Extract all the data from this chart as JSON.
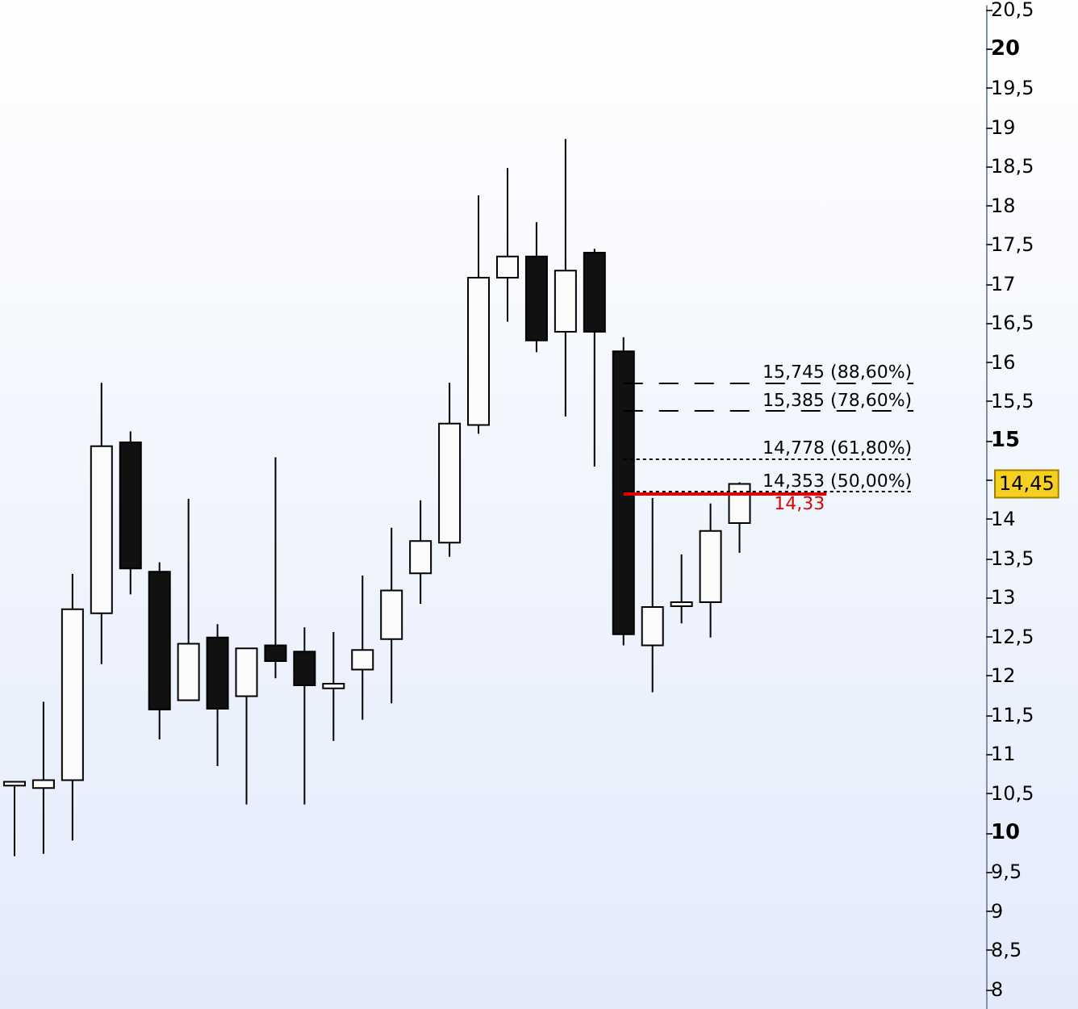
{
  "chart_data": {
    "type": "candlestick",
    "categories": [
      null,
      null,
      null,
      null,
      null,
      null,
      null,
      null,
      null,
      null,
      null,
      null,
      null,
      null,
      null,
      null,
      null,
      null,
      null,
      null,
      null,
      null,
      null,
      null,
      null,
      null,
      null,
      null,
      null,
      null,
      null,
      null,
      null,
      null
    ],
    "ohlc": [
      [
        10.6,
        10.65,
        9.7,
        10.65
      ],
      [
        10.57,
        11.67,
        9.73,
        10.67
      ],
      [
        10.67,
        13.3,
        9.9,
        12.85
      ],
      [
        12.8,
        15.74,
        12.15,
        14.93
      ],
      [
        14.98,
        15.12,
        13.04,
        13.37
      ],
      [
        13.33,
        13.45,
        11.19,
        11.57
      ],
      [
        11.69,
        14.26,
        11.69,
        12.41
      ],
      [
        12.49,
        12.66,
        10.85,
        11.58
      ],
      [
        11.74,
        12.35,
        10.36,
        12.35
      ],
      [
        12.39,
        14.79,
        11.97,
        12.19
      ],
      [
        12.31,
        12.62,
        10.36,
        11.88
      ],
      [
        11.84,
        12.56,
        11.17,
        11.9
      ],
      [
        12.08,
        13.28,
        11.44,
        12.33
      ],
      [
        12.47,
        13.89,
        11.65,
        13.09
      ],
      [
        13.31,
        14.24,
        12.92,
        13.72
      ],
      [
        13.7,
        15.74,
        13.52,
        15.22
      ],
      [
        15.2,
        18.13,
        15.09,
        17.08
      ],
      [
        17.08,
        18.48,
        16.52,
        17.35
      ],
      [
        17.35,
        17.79,
        16.13,
        16.28
      ],
      [
        16.39,
        18.85,
        15.31,
        17.17
      ],
      [
        17.4,
        17.45,
        14.67,
        16.39
      ],
      [
        16.14,
        16.32,
        12.39,
        12.53
      ],
      [
        12.39,
        14.27,
        11.79,
        12.88
      ],
      [
        12.89,
        13.55,
        12.67,
        12.94
      ],
      [
        12.94,
        14.2,
        12.49,
        13.85
      ],
      [
        13.95,
        14.47,
        13.57,
        14.45
      ],
      null,
      null,
      null,
      null,
      null,
      null,
      null,
      null
    ],
    "ylim": [
      7.75,
      20.55
    ],
    "yticks": [
      8,
      {
        "value": 8.5,
        "label": "8,5"
      },
      9,
      {
        "value": 9.5,
        "label": "9,5"
      },
      10,
      {
        "value": 10.5,
        "label": "10,5"
      },
      11,
      {
        "value": 11.5,
        "label": "11,5"
      },
      12,
      {
        "value": 12.5,
        "label": "12,5"
      },
      13,
      {
        "value": 13.5,
        "label": "13,5"
      },
      14,
      {
        "value": 14.5,
        "label": null
      },
      15,
      {
        "value": 15.5,
        "label": "15,5"
      },
      16,
      {
        "value": 16.5,
        "label": "16,5"
      },
      17,
      {
        "value": 17.5,
        "label": "17,5"
      },
      18,
      {
        "value": 18.5,
        "label": "18,5"
      },
      19,
      {
        "value": 19.5,
        "label": "19,5"
      },
      20,
      {
        "value": 20.5,
        "label": "20,5"
      }
    ],
    "tick_labels": "y",
    "grid": false,
    "ref_lines": [
      {
        "axis": "y",
        "value": 15.745,
        "label": "15,745 (88,60%)",
        "line_style": "dashed",
        "color": "#000000"
      },
      {
        "axis": "y",
        "value": 15.385,
        "label": "15,385 (78,60%)",
        "line_style": "dashed",
        "color": "#000000"
      },
      {
        "axis": "y",
        "value": 14.778,
        "label": "14,778 (61,80%)",
        "line_style": "dotted",
        "color": "#000000"
      },
      {
        "axis": "y",
        "value": 14.353,
        "label": "14,353 (50,00%)",
        "line_style": "dotted",
        "color": "#000000"
      },
      {
        "axis": "y",
        "value": 14.33,
        "label": "14,33",
        "line_style": "solid",
        "color": "#e00000"
      }
    ],
    "annotations": [
      "14,45"
    ]
  }
}
